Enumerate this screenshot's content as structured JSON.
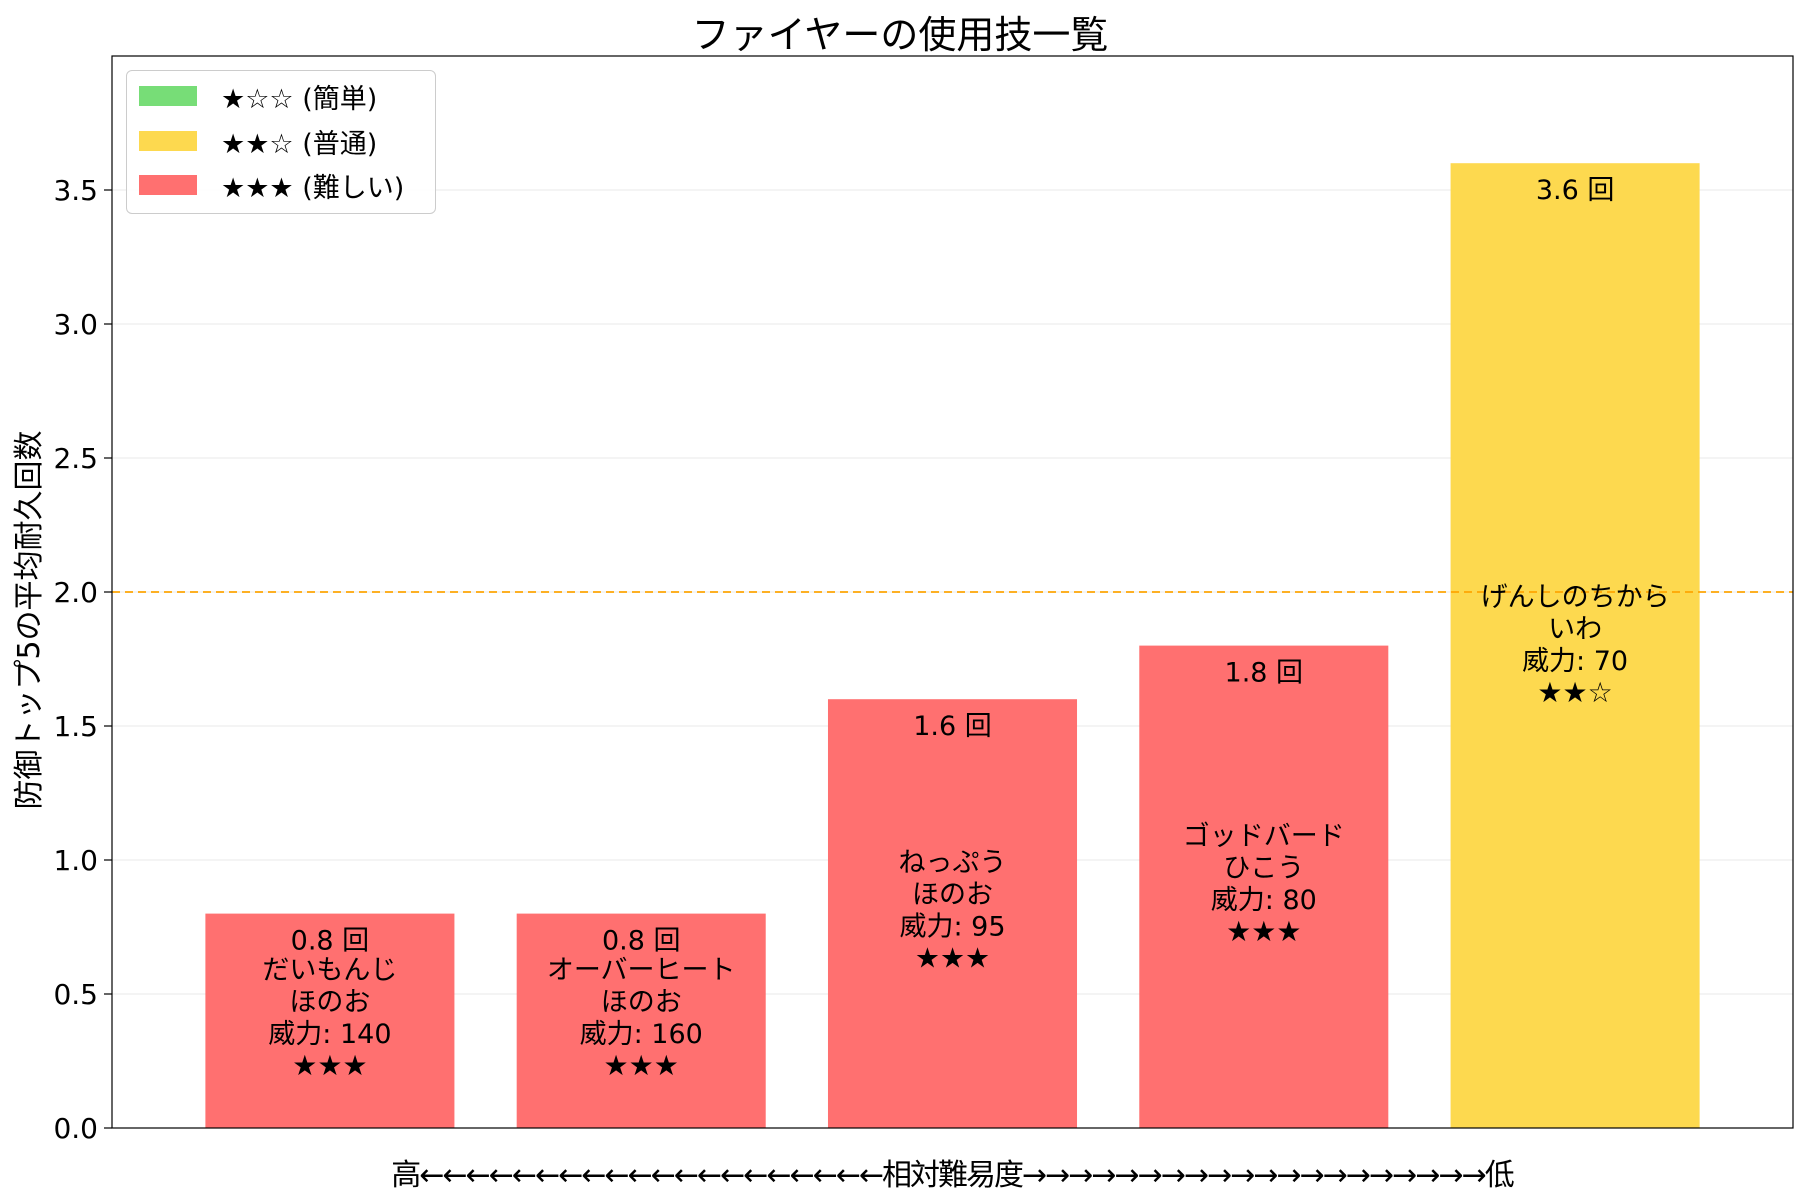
{
  "chart_data": {
    "type": "bar",
    "title": "ファイヤーの使用技一覧",
    "xlabel": "高←←←←←←←←←←←←←←←←←←←←相対難易度→→→→→→→→→→→→→→→→→→→→低",
    "ylabel": "防御トップ5の平均耐久回数",
    "ylim": [
      0,
      4.0
    ],
    "yticks": [
      "0.0",
      "0.5",
      "1.0",
      "1.5",
      "2.0",
      "2.5",
      "3.0",
      "3.5"
    ],
    "reference_line": {
      "value": 2.0,
      "color": "#FFA500",
      "style": "dashed"
    },
    "grid": "horizontal",
    "legend": {
      "placement": "top-left",
      "entries": [
        {
          "label": "★☆☆ (簡単)",
          "color": "#77DD77"
        },
        {
          "label": "★★☆ (普通)",
          "color": "#FDD94F"
        },
        {
          "label": "★★★ (難しい)",
          "color": "#FF7070"
        }
      ]
    },
    "bars": [
      {
        "move": "だいもんじ",
        "type": "ほのお",
        "power": "威力: 140",
        "stars": "★★★",
        "value": 0.8,
        "value_label": "0.8 回",
        "color": "#FF7070"
      },
      {
        "move": "オーバーヒート",
        "type": "ほのお",
        "power": "威力: 160",
        "stars": "★★★",
        "value": 0.8,
        "value_label": "0.8 回",
        "color": "#FF7070"
      },
      {
        "move": "ねっぷう",
        "type": "ほのお",
        "power": "威力: 95",
        "stars": "★★★",
        "value": 1.6,
        "value_label": "1.6 回",
        "color": "#FF7070"
      },
      {
        "move": "ゴッドバード",
        "type": "ひこう",
        "power": "威力: 80",
        "stars": "★★★",
        "value": 1.8,
        "value_label": "1.8 回",
        "color": "#FF7070"
      },
      {
        "move": "げんしのちから",
        "type": "いわ",
        "power": "威力: 70",
        "stars": "★★☆",
        "value": 3.6,
        "value_label": "3.6 回",
        "color": "#FDD94F"
      }
    ]
  }
}
